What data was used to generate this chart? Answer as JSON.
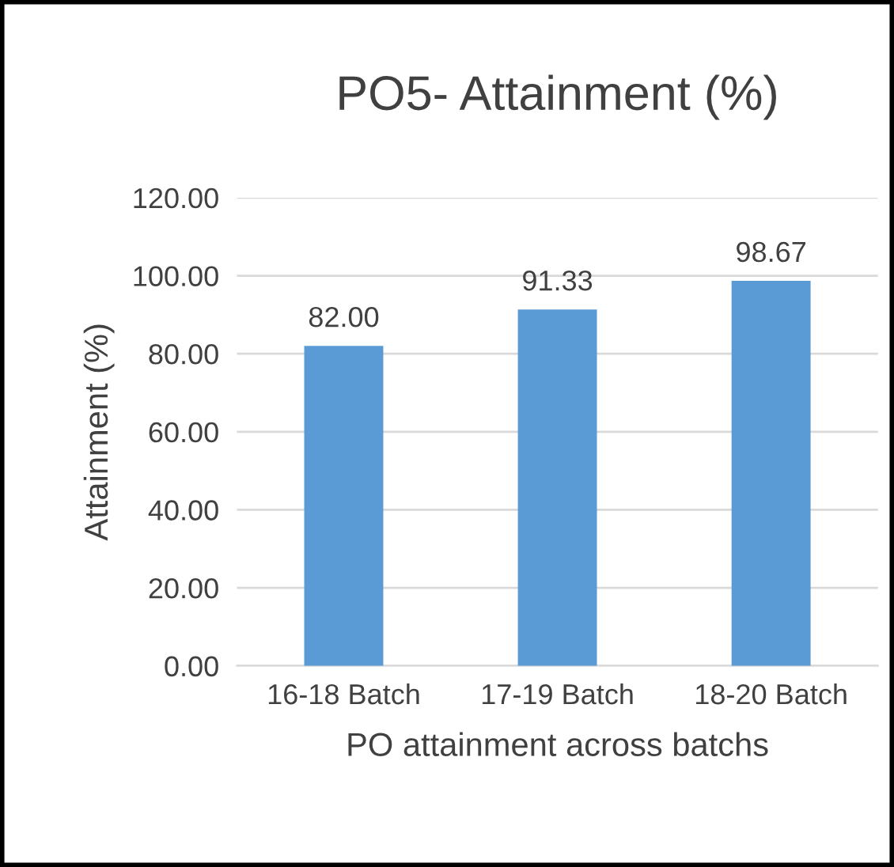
{
  "chart_data": {
    "type": "bar",
    "title": "PO5- Attainment (%)",
    "xlabel": "PO attainment across batchs",
    "ylabel": "Attainment (%)",
    "categories": [
      "16-18 Batch",
      "17-19 Batch",
      "18-20 Batch"
    ],
    "values": [
      82.0,
      91.33,
      98.67
    ],
    "color": "#5b9bd5",
    "value_labels": [
      "82.00",
      "91.33",
      "98.67"
    ],
    "ylim": [
      0,
      120
    ],
    "yticks": [
      {
        "value": 0,
        "label": "0.00"
      },
      {
        "value": 20,
        "label": "20.00"
      },
      {
        "value": 40,
        "label": "40.00"
      },
      {
        "value": 60,
        "label": "60.00"
      },
      {
        "value": 80,
        "label": "80.00"
      },
      {
        "value": 100,
        "label": "100.00"
      },
      {
        "value": 120,
        "label": "120.00"
      }
    ],
    "grid": "y"
  }
}
